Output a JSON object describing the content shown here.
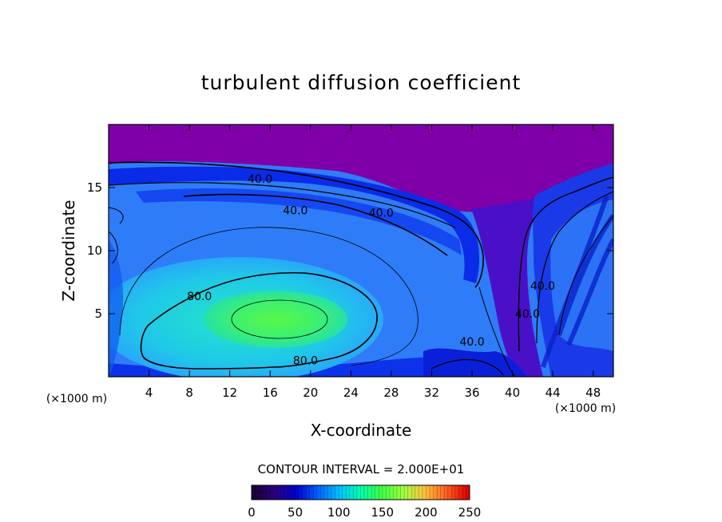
{
  "chart_data": {
    "type": "heatmap",
    "title": "turbulent diffusion coefficient",
    "xlabel": "X-coordinate",
    "ylabel": "Z-coordinate",
    "x_unit": "(×1000 m)",
    "z_unit": "(×1000 m)",
    "xlim": [
      0,
      50
    ],
    "ylim": [
      0,
      20
    ],
    "x_ticks": [
      4,
      8,
      12,
      16,
      20,
      24,
      28,
      32,
      36,
      40,
      44,
      48
    ],
    "y_ticks": [
      5,
      10,
      15
    ],
    "contour_interval_label": "CONTOUR INTERVAL = 2.000E+01",
    "contour_labels": [
      {
        "text": "40.0",
        "x": 15,
        "z": 15.7
      },
      {
        "text": "40.0",
        "x": 18.5,
        "z": 13.2
      },
      {
        "text": "40.0",
        "x": 27,
        "z": 13.0
      },
      {
        "text": "80.0",
        "x": 9,
        "z": 6.4
      },
      {
        "text": "80.0",
        "x": 19.5,
        "z": 1.3
      },
      {
        "text": "40.0",
        "x": 36,
        "z": 2.8
      },
      {
        "text": "40.0",
        "x": 41.5,
        "z": 5.0
      },
      {
        "text": "40.0",
        "x": 43,
        "z": 7.2
      }
    ],
    "colorbar": {
      "min": 0,
      "max": 250,
      "ticks": [
        0,
        50,
        100,
        150,
        200,
        250
      ],
      "colors": [
        "#1a0033",
        "#2a0080",
        "#0000cc",
        "#0060ff",
        "#00c0ff",
        "#00ffb0",
        "#40ff40",
        "#a0ff40",
        "#ffc040",
        "#ff6020",
        "#e00000"
      ]
    },
    "colors": {
      "top_layer": "#7f00a8",
      "core": "#50f050",
      "mid": "#30d8c0",
      "outer": "#2f8bff",
      "deep": "#0a2be8"
    }
  }
}
